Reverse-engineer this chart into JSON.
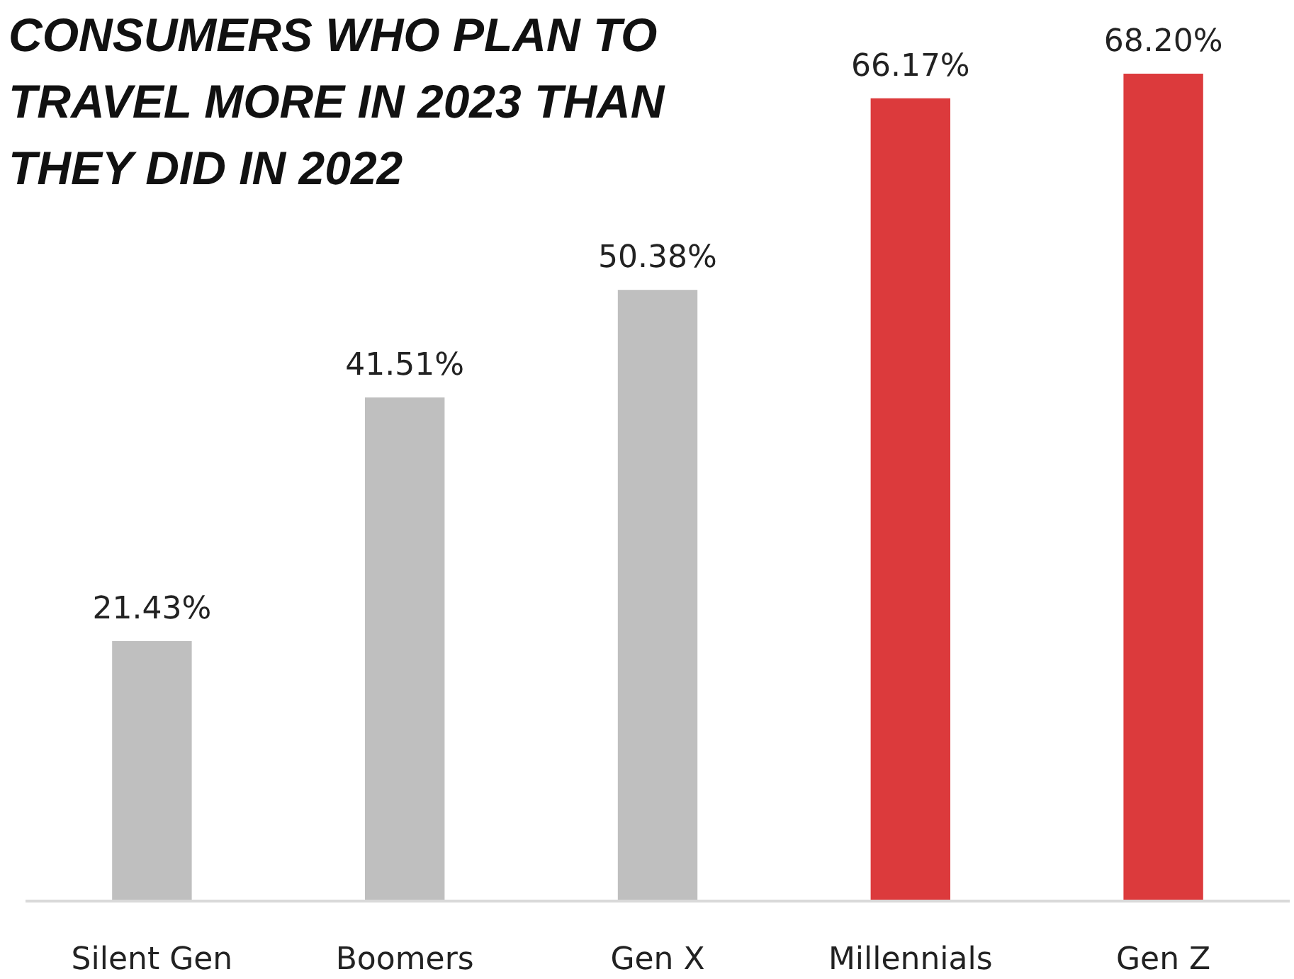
{
  "chart_data": {
    "type": "bar",
    "title": "CONSUMERS WHO PLAN TO TRAVEL MORE IN 2023 THAN THEY DID IN 2022",
    "categories": [
      "Silent Gen",
      "Boomers",
      "Gen X",
      "Millennials",
      "Gen Z"
    ],
    "values": [
      21.43,
      41.51,
      50.38,
      66.17,
      68.2
    ],
    "value_labels": [
      "21.43%",
      "41.51%",
      "50.38%",
      "66.17%",
      "68.20%"
    ],
    "colors": [
      "#bfbfbf",
      "#bfbfbf",
      "#bfbfbf",
      "#dc3a3c",
      "#dc3a3c"
    ]
  }
}
